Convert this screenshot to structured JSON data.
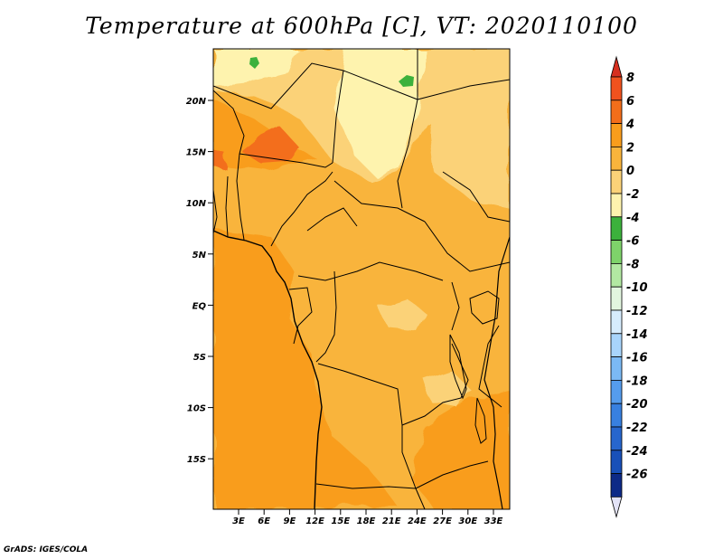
{
  "title": "Temperature at 600hPa [C], VT: 2020110100",
  "credit": "GrADS: IGES/COLA",
  "map": {
    "lat_labels": [
      "20N",
      "15N",
      "10N",
      "5N",
      "EQ",
      "5S",
      "10S",
      "15S"
    ],
    "lon_labels": [
      "3E",
      "6E",
      "9E",
      "12E",
      "15E",
      "18E",
      "21E",
      "24E",
      "27E",
      "30E",
      "33E"
    ]
  },
  "colorbar": {
    "levels": [
      "8",
      "6",
      "4",
      "2",
      "0",
      "-2",
      "-4",
      "-6",
      "-8",
      "-10",
      "-12",
      "-14",
      "-16",
      "-18",
      "-20",
      "-22",
      "-24",
      "-26"
    ],
    "colors": [
      "#d62f1f",
      "#f0521e",
      "#f36e1a",
      "#f99d1c",
      "#f9b43c",
      "#fbd278",
      "#fef3ae",
      "#3cb13c",
      "#7ed36a",
      "#b2e8a2",
      "#e2f6df",
      "#d6ecfd",
      "#a8d4fb",
      "#7bb9f4",
      "#559ced",
      "#3880e0",
      "#2766cd",
      "#1850b8",
      "#0d2a87",
      "#e3e3f7"
    ]
  }
}
